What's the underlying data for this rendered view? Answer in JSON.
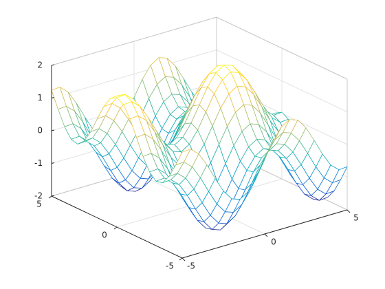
{
  "chart_data": {
    "type": "mesh",
    "x": [
      -5,
      -4.5,
      -4,
      -3.5,
      -3,
      -2.5,
      -2,
      -1.5,
      -1,
      -0.5,
      0,
      0.5,
      1,
      1.5,
      2,
      2.5,
      3,
      3.5,
      4,
      4.5,
      5
    ],
    "y": [
      -5,
      -4.5,
      -4,
      -3.5,
      -3,
      -2.5,
      -2,
      -1.5,
      -1,
      -0.5,
      0,
      0.5,
      1,
      1.5,
      2,
      2.5,
      3,
      3.5,
      4,
      4.5,
      5
    ],
    "z": [
      [
        1.24,
        1.26,
        1.04,
        0.63,
        0.14,
        -0.32,
        -0.63,
        -0.72,
        -0.56,
        -0.2,
        0.28,
        0.76,
        1.12,
        1.28,
        1.19,
        0.88,
        0.42,
        -0.07,
        -0.48,
        -0.7,
        -0.68
      ],
      [
        0.75,
        0.77,
        0.55,
        0.14,
        -0.35,
        -0.81,
        -1.12,
        -1.21,
        -1.05,
        -0.69,
        -0.21,
        0.27,
        0.63,
        0.79,
        0.7,
        0.39,
        -0.07,
        -0.56,
        -0.97,
        -1.19,
        -1.17
      ],
      [
        0.31,
        0.33,
        0.11,
        -0.3,
        -0.79,
        -1.25,
        -1.56,
        -1.65,
        -1.49,
        -1.13,
        -0.65,
        -0.17,
        0.19,
        0.35,
        0.26,
        -0.05,
        -0.51,
        -1.0,
        -1.41,
        -1.63,
        -1.61
      ],
      [
        0.02,
        0.04,
        -0.18,
        -0.59,
        -1.08,
        -1.54,
        -1.85,
        -1.94,
        -1.78,
        -1.42,
        -0.94,
        -0.46,
        -0.1,
        0.06,
        -0.03,
        -0.34,
        -0.8,
        -1.29,
        -1.7,
        -1.92,
        -1.9
      ],
      [
        -0.03,
        -0.01,
        -0.23,
        -0.64,
        -1.13,
        -1.59,
        -1.9,
        -1.99,
        -1.83,
        -1.47,
        -0.99,
        -0.51,
        -0.15,
        0.01,
        -0.08,
        -0.39,
        -0.85,
        -1.34,
        -1.75,
        -1.97,
        -1.95
      ],
      [
        0.16,
        0.18,
        -0.04,
        -0.45,
        -0.94,
        -1.4,
        -1.71,
        -1.8,
        -1.64,
        -1.28,
        -0.8,
        -0.32,
        0.04,
        0.2,
        0.11,
        -0.2,
        -0.66,
        -1.15,
        -1.56,
        -1.78,
        -1.76
      ],
      [
        0.54,
        0.56,
        0.34,
        -0.07,
        -0.56,
        -1.02,
        -1.33,
        -1.42,
        -1.26,
        -0.9,
        -0.42,
        0.06,
        0.42,
        0.58,
        0.49,
        0.18,
        -0.28,
        -0.77,
        -1.18,
        -1.4,
        -1.38
      ],
      [
        1.03,
        1.05,
        0.83,
        0.42,
        -0.07,
        -0.53,
        -0.84,
        -0.93,
        -0.77,
        -0.41,
        0.07,
        0.55,
        0.91,
        1.07,
        0.98,
        0.67,
        0.21,
        -0.28,
        -0.69,
        -0.91,
        -0.89
      ],
      [
        1.5,
        1.52,
        1.3,
        0.89,
        0.4,
        -0.06,
        -0.37,
        -0.46,
        -0.3,
        0.06,
        0.54,
        1.02,
        1.38,
        1.54,
        1.45,
        1.14,
        0.68,
        0.19,
        -0.22,
        -0.44,
        -0.42
      ],
      [
        1.84,
        1.86,
        1.64,
        1.23,
        0.74,
        0.28,
        -0.03,
        -0.12,
        0.04,
        0.4,
        0.88,
        1.36,
        1.72,
        1.88,
        1.79,
        1.48,
        1.02,
        0.53,
        0.12,
        -0.1,
        -0.08
      ],
      [
        1.96,
        1.98,
        1.76,
        1.35,
        0.86,
        0.4,
        0.09,
        0.0,
        0.16,
        0.52,
        1.0,
        1.48,
        1.84,
        2.0,
        1.91,
        1.6,
        1.14,
        0.65,
        0.24,
        0.02,
        0.04
      ],
      [
        1.84,
        1.86,
        1.64,
        1.23,
        0.74,
        0.28,
        -0.03,
        -0.12,
        0.04,
        0.4,
        0.88,
        1.36,
        1.72,
        1.88,
        1.79,
        1.48,
        1.02,
        0.53,
        0.12,
        -0.1,
        -0.08
      ],
      [
        1.5,
        1.52,
        1.3,
        0.89,
        0.4,
        -0.06,
        -0.37,
        -0.46,
        -0.3,
        0.06,
        0.54,
        1.02,
        1.38,
        1.54,
        1.45,
        1.14,
        0.68,
        0.19,
        -0.22,
        -0.44,
        -0.42
      ],
      [
        1.03,
        1.05,
        0.83,
        0.42,
        -0.07,
        -0.53,
        -0.84,
        -0.93,
        -0.77,
        -0.41,
        0.07,
        0.55,
        0.91,
        1.07,
        0.98,
        0.67,
        0.21,
        -0.28,
        -0.69,
        -0.91,
        -0.89
      ],
      [
        0.54,
        0.56,
        0.34,
        -0.07,
        -0.56,
        -1.02,
        -1.33,
        -1.42,
        -1.26,
        -0.9,
        -0.42,
        0.06,
        0.42,
        0.58,
        0.49,
        0.18,
        -0.28,
        -0.77,
        -1.18,
        -1.4,
        -1.38
      ],
      [
        0.16,
        0.18,
        -0.04,
        -0.45,
        -0.94,
        -1.4,
        -1.71,
        -1.8,
        -1.64,
        -1.28,
        -0.8,
        -0.32,
        0.04,
        0.2,
        0.11,
        -0.2,
        -0.66,
        -1.15,
        -1.56,
        -1.78,
        -1.76
      ],
      [
        -0.03,
        -0.01,
        -0.23,
        -0.64,
        -1.13,
        -1.59,
        -1.9,
        -1.99,
        -1.83,
        -1.47,
        -0.99,
        -0.51,
        -0.15,
        0.01,
        -0.08,
        -0.39,
        -0.85,
        -1.34,
        -1.75,
        -1.97,
        -1.95
      ],
      [
        0.02,
        0.04,
        -0.18,
        -0.59,
        -1.08,
        -1.54,
        -1.85,
        -1.94,
        -1.78,
        -1.42,
        -0.94,
        -0.46,
        -0.1,
        0.06,
        -0.03,
        -0.34,
        -0.8,
        -1.29,
        -1.7,
        -1.92,
        -1.9
      ],
      [
        0.31,
        0.33,
        0.11,
        -0.3,
        -0.79,
        -1.25,
        -1.56,
        -1.65,
        -1.49,
        -1.13,
        -0.65,
        -0.17,
        0.19,
        0.35,
        0.26,
        -0.05,
        -0.51,
        -1.0,
        -1.41,
        -1.63,
        -1.61
      ],
      [
        0.75,
        0.77,
        0.55,
        0.14,
        -0.35,
        -0.81,
        -1.12,
        -1.21,
        -1.05,
        -0.69,
        -0.21,
        0.27,
        0.63,
        0.79,
        0.7,
        0.39,
        -0.07,
        -0.56,
        -0.97,
        -1.19,
        -1.17
      ],
      [
        1.24,
        1.26,
        1.04,
        0.63,
        0.14,
        -0.32,
        -0.63,
        -0.72,
        -0.56,
        -0.2,
        0.28,
        0.76,
        1.12,
        1.28,
        1.19,
        0.88,
        0.42,
        -0.07,
        -0.48,
        -0.7,
        -0.68
      ]
    ],
    "xlim": [
      -5,
      5
    ],
    "ylim": [
      -5,
      5
    ],
    "zlim": [
      -2,
      2
    ],
    "xticks": [
      -5,
      0,
      5
    ],
    "yticks": [
      -5,
      0,
      5
    ],
    "zticks": [
      -2,
      -1,
      0,
      1,
      2
    ],
    "grid": true,
    "colormap": [
      "#352a87",
      "#0f5cdd",
      "#1481d6",
      "#06a4ca",
      "#2eb7a4",
      "#87bf77",
      "#d1bb59",
      "#fec832",
      "#f9fb0e"
    ]
  }
}
